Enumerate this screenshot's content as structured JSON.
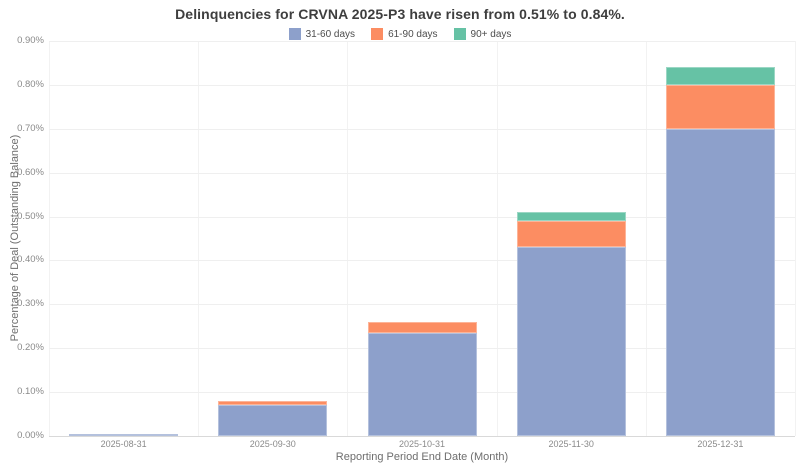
{
  "chart_data": {
    "type": "bar",
    "stacked": true,
    "title": "Delinquencies for CRVNA 2025-P3 have risen from 0.51% to 0.84%.",
    "xlabel": "Reporting Period End Date (Month)",
    "ylabel": "Percentage of Deal (Outstanding Balance)",
    "categories": [
      "2025-08-31",
      "2025-09-30",
      "2025-10-31",
      "2025-11-30",
      "2025-12-31"
    ],
    "series": [
      {
        "name": "31-60 days",
        "color": "#8da0cb",
        "values": [
          0.004,
          0.07,
          0.235,
          0.43,
          0.7
        ]
      },
      {
        "name": "61-90 days",
        "color": "#fc8d62",
        "values": [
          0.0,
          0.01,
          0.025,
          0.06,
          0.1
        ]
      },
      {
        "name": "90+ days",
        "color": "#66c2a5",
        "values": [
          0.0,
          0.0,
          0.0,
          0.02,
          0.04
        ]
      }
    ],
    "totals": [
      0.004,
      0.08,
      0.26,
      0.51,
      0.84
    ],
    "ylim": [
      0.0,
      0.9
    ],
    "ytick_step": 0.1,
    "ytick_labels": [
      "0.00%",
      "0.10%",
      "0.20%",
      "0.30%",
      "0.40%",
      "0.50%",
      "0.60%",
      "0.70%",
      "0.80%",
      "0.90%"
    ],
    "grid": true,
    "legend_position": "top-center"
  },
  "colors": {
    "background": "#ffffff",
    "title_text": "#3e3e3e",
    "tick_text": "#8a8a8a",
    "axis_title_text": "#6e6e6e",
    "legend_text": "#4d4d4d",
    "gridline_h": "#efefef",
    "gridline_v": "#f2f2f2",
    "axis_line": "#d9d9d9"
  }
}
